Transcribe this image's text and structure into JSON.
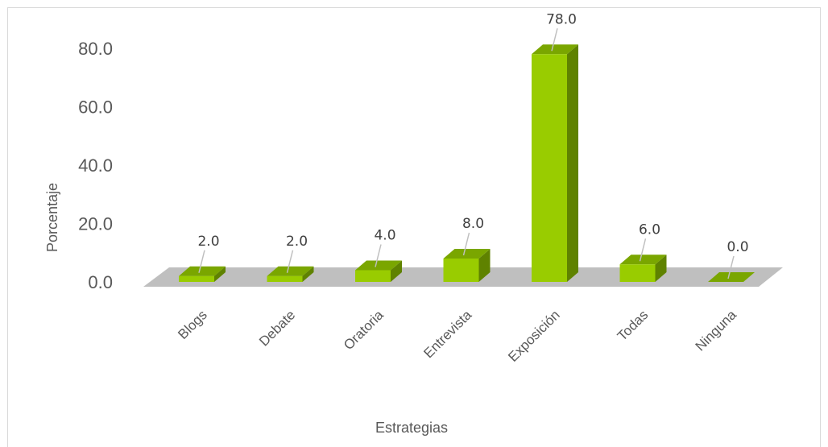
{
  "chart_data": {
    "type": "bar",
    "style": "3d-column",
    "categories": [
      "Blogs",
      "Debate",
      "Oratoria",
      "Entrevista",
      "Exposición",
      "Todas",
      "Ninguna"
    ],
    "values": [
      2.0,
      2.0,
      4.0,
      8.0,
      78.0,
      6.0,
      0.0
    ],
    "data_labels": [
      "2.0",
      "2.0",
      "4.0",
      "8.0",
      "78.0",
      "6.0",
      "0.0"
    ],
    "title": "",
    "xlabel": "Estrategias",
    "ylabel": "Porcentaje",
    "ylim": [
      0,
      80
    ],
    "yticks": [
      "0.0",
      "20.0",
      "40.0",
      "60.0",
      "80.0"
    ],
    "grid": false,
    "legend": "none",
    "colors": {
      "bar_front": "#99cc00",
      "bar_top": "#7aa600",
      "bar_side": "#5f8200",
      "floor": "#bfbfbf"
    }
  }
}
